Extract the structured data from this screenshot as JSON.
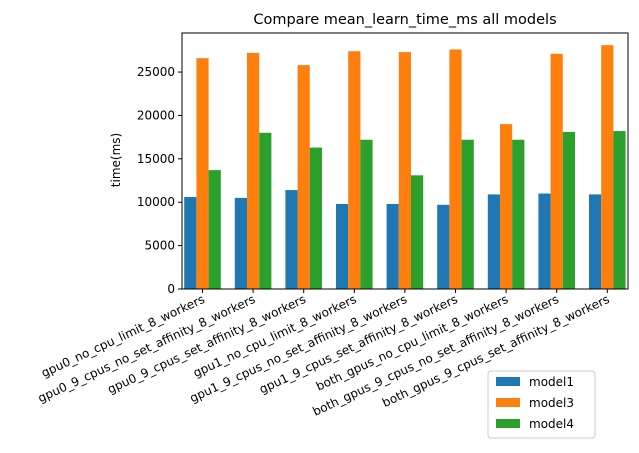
{
  "chart_data": {
    "type": "bar",
    "title": "Compare mean_learn_time_ms all models",
    "xlabel": "",
    "ylabel": "time(ms)",
    "ylim": [
      0,
      29500
    ],
    "yticks": [
      0,
      5000,
      10000,
      15000,
      20000,
      25000
    ],
    "ytick_labels": [
      "0",
      "5000",
      "10000",
      "15000",
      "20000",
      "25000"
    ],
    "grid": false,
    "legend_position": "bottom-right",
    "categories": [
      "gpu0_no_cpu_limit_8_workers",
      "gpu0_9_cpus_no_set_affinity_8_workers",
      "gpu0_9_cpus_set_affinity_8_workers",
      "gpu1_no_cpu_limit_8_workers",
      "gpu1_9_cpus_no_set_affinity_8_workers",
      "gpu1_9_cpus_set_affinity_8_workers",
      "both_gpus_no_cpu_limit_8_workers",
      "both_gpus_9_cpus_no_set_affinity_8_workers",
      "both_gpus_9_cpus_set_affinity_8_workers"
    ],
    "series": [
      {
        "name": "model1",
        "color": "#1f77b4",
        "values": [
          10600,
          10500,
          11400,
          9800,
          9800,
          9700,
          10900,
          11000,
          10900
        ]
      },
      {
        "name": "model3",
        "color": "#ff7f0e",
        "values": [
          26600,
          27200,
          25800,
          27400,
          27300,
          27600,
          19000,
          27100,
          28100
        ]
      },
      {
        "name": "model4",
        "color": "#2ca02c",
        "values": [
          13700,
          18000,
          16300,
          17200,
          13100,
          17200,
          17200,
          18100,
          18200
        ]
      }
    ]
  }
}
